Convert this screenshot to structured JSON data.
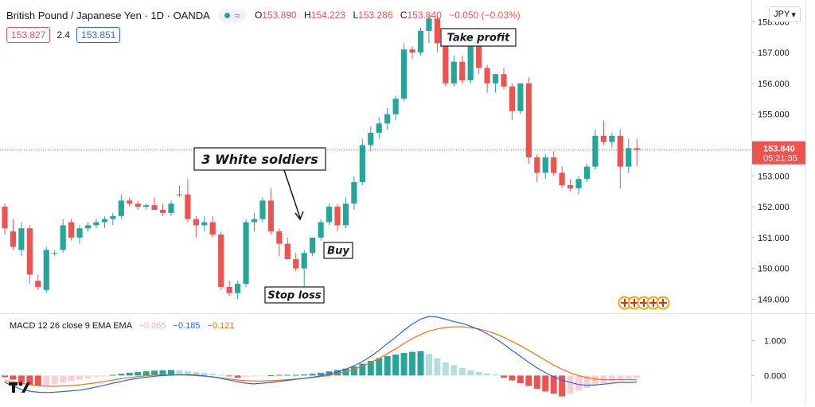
{
  "header": {
    "symbol_title": "British Pound / Japanese Yen · 1D · OANDA",
    "status_icon": "circle-dot-icon",
    "ohlc": [
      {
        "label": "O",
        "value": "153.890"
      },
      {
        "label": "H",
        "value": "154.223"
      },
      {
        "label": "L",
        "value": "153.286"
      },
      {
        "label": "C",
        "value": "153.840"
      }
    ],
    "change": "−0.050 (−0.03%)"
  },
  "quote": {
    "sell": "153.827",
    "spread": "2.4",
    "buy": "153.851"
  },
  "currency": "JPY",
  "price_axis": {
    "ticks": [
      "158.000",
      "157.000",
      "156.000",
      "155.000",
      "154.000",
      "153.000",
      "152.000",
      "151.000",
      "150.000",
      "149.000"
    ],
    "last_price": "153.840",
    "countdown": "05:21:35"
  },
  "macd": {
    "legend": "MACD 12 26 close 9 EMA EMA",
    "values": [
      "−0.065",
      "−0.185",
      "−0.121"
    ],
    "ticks": [
      "1.000",
      "0.000"
    ]
  },
  "annotations": {
    "three_soldiers": "3 White soldiers",
    "take_profit": "Take profit",
    "buy": "Buy",
    "stop_loss": "Stop loss"
  },
  "colors": {
    "up": "#26a69a",
    "down": "#ef5350",
    "macd_line": "#2962ff",
    "signal_line": "#ff6d00",
    "hist_up": "#26a69a",
    "hist_up_weak": "#b2dfdb",
    "hist_down": "#ef5350",
    "hist_down_weak": "#ffcdd2"
  },
  "chart_data": [
    {
      "type": "candlestick",
      "title": "British Pound / Japanese Yen · 1D · OANDA",
      "ylim": [
        148.6,
        158.6
      ],
      "ohlc": [
        [
          152.0,
          152.1,
          151.1,
          151.3
        ],
        [
          151.2,
          151.6,
          150.6,
          150.7
        ],
        [
          150.6,
          151.5,
          150.4,
          151.3
        ],
        [
          151.3,
          151.4,
          149.5,
          149.8
        ],
        [
          149.6,
          149.8,
          149.3,
          149.4
        ],
        [
          149.3,
          150.7,
          149.2,
          150.6
        ],
        [
          150.5,
          150.6,
          150.4,
          150.5
        ],
        [
          150.6,
          151.6,
          150.5,
          151.4
        ],
        [
          151.5,
          151.6,
          150.9,
          151.0
        ],
        [
          151.0,
          151.4,
          150.8,
          151.3
        ],
        [
          151.3,
          151.5,
          151.2,
          151.4
        ],
        [
          151.4,
          151.6,
          151.3,
          151.5
        ],
        [
          151.5,
          151.7,
          151.3,
          151.6
        ],
        [
          151.6,
          151.8,
          151.4,
          151.7
        ],
        [
          151.7,
          152.4,
          151.6,
          152.2
        ],
        [
          152.2,
          152.3,
          152.0,
          152.1
        ],
        [
          152.1,
          152.2,
          151.9,
          152.0
        ],
        [
          152.0,
          152.1,
          151.9,
          152.05
        ],
        [
          152.05,
          152.3,
          151.9,
          151.9
        ],
        [
          151.9,
          152.1,
          151.7,
          151.8
        ],
        [
          151.8,
          152.2,
          151.7,
          152.1
        ],
        [
          152.4,
          152.7,
          152.3,
          152.4
        ],
        [
          152.4,
          152.9,
          151.5,
          151.6
        ],
        [
          151.6,
          151.7,
          151.0,
          151.4
        ],
        [
          151.4,
          151.7,
          151.2,
          151.5
        ],
        [
          151.5,
          151.7,
          151.0,
          151.1
        ],
        [
          151.1,
          151.2,
          149.3,
          149.4
        ],
        [
          149.4,
          149.6,
          149.1,
          149.2
        ],
        [
          149.2,
          149.6,
          149.0,
          149.5
        ],
        [
          149.5,
          151.6,
          149.4,
          151.5
        ],
        [
          151.5,
          151.8,
          151.2,
          151.6
        ],
        [
          151.6,
          152.3,
          151.5,
          152.2
        ],
        [
          152.2,
          152.6,
          151.1,
          151.2
        ],
        [
          151.2,
          151.3,
          150.4,
          150.8
        ],
        [
          150.8,
          151.0,
          150.3,
          150.3
        ],
        [
          150.3,
          150.5,
          149.9,
          150.0
        ],
        [
          150.0,
          150.6,
          149.2,
          150.5
        ],
        [
          150.5,
          151.0,
          150.4,
          151.0
        ],
        [
          151.0,
          151.6,
          150.9,
          151.5
        ],
        [
          151.5,
          152.1,
          151.4,
          152.0
        ],
        [
          152.0,
          152.1,
          151.2,
          151.4
        ],
        [
          151.4,
          152.3,
          151.3,
          152.1
        ],
        [
          152.1,
          153.0,
          151.9,
          152.8
        ],
        [
          152.8,
          154.2,
          152.7,
          154.0
        ],
        [
          154.0,
          154.6,
          153.8,
          154.4
        ],
        [
          154.4,
          154.9,
          154.2,
          154.7
        ],
        [
          154.7,
          155.2,
          154.5,
          155.0
        ],
        [
          155.0,
          155.6,
          154.8,
          155.5
        ],
        [
          155.5,
          157.3,
          155.4,
          157.1
        ],
        [
          157.1,
          157.2,
          156.8,
          157.0
        ],
        [
          157.0,
          157.8,
          156.9,
          157.7
        ],
        [
          157.7,
          158.2,
          157.3,
          158.1
        ],
        [
          158.1,
          158.2,
          157.0,
          157.3
        ],
        [
          157.3,
          157.4,
          155.9,
          156.0
        ],
        [
          156.0,
          156.9,
          155.9,
          156.7
        ],
        [
          156.7,
          156.9,
          156.0,
          156.1
        ],
        [
          156.1,
          157.5,
          156.0,
          157.3
        ],
        [
          157.3,
          157.8,
          156.3,
          156.5
        ],
        [
          156.5,
          156.6,
          155.7,
          156.0
        ],
        [
          156.0,
          156.3,
          155.7,
          156.3
        ],
        [
          156.3,
          156.5,
          155.8,
          155.9
        ],
        [
          155.9,
          156.0,
          154.8,
          155.1
        ],
        [
          155.1,
          156.0,
          155.0,
          156.0
        ],
        [
          156.0,
          156.2,
          153.4,
          153.6
        ],
        [
          153.6,
          153.7,
          152.8,
          153.1
        ],
        [
          153.1,
          153.7,
          152.9,
          153.6
        ],
        [
          153.6,
          153.8,
          153.0,
          153.1
        ],
        [
          153.1,
          153.3,
          152.6,
          152.7
        ],
        [
          152.7,
          152.9,
          152.5,
          152.6
        ],
        [
          152.6,
          153.0,
          152.4,
          152.9
        ],
        [
          152.9,
          153.4,
          152.8,
          153.3
        ],
        [
          153.3,
          154.5,
          153.2,
          154.3
        ],
        [
          154.3,
          154.8,
          154.0,
          154.1
        ],
        [
          154.1,
          154.4,
          153.9,
          154.3
        ],
        [
          154.3,
          154.5,
          152.6,
          153.3
        ],
        [
          153.3,
          154.2,
          153.1,
          153.9
        ],
        [
          153.9,
          154.2,
          153.3,
          153.84
        ]
      ]
    },
    {
      "type": "bar+line",
      "title": "MACD 12 26 close 9 EMA EMA",
      "ylim": [
        -0.7,
        1.7
      ],
      "histogram": [
        -0.05,
        -0.12,
        -0.2,
        -0.28,
        -0.3,
        -0.28,
        -0.24,
        -0.2,
        -0.16,
        -0.12,
        -0.08,
        -0.04,
        -0.02,
        0.02,
        0.05,
        0.08,
        0.1,
        0.12,
        0.14,
        0.15,
        0.16,
        0.15,
        0.13,
        0.1,
        0.08,
        0.05,
        0.02,
        -0.02,
        -0.06,
        -0.05,
        -0.03,
        -0.01,
        0.01,
        0.02,
        0.02,
        0.02,
        0.03,
        0.05,
        0.08,
        0.12,
        0.16,
        0.2,
        0.26,
        0.34,
        0.42,
        0.5,
        0.56,
        0.6,
        0.65,
        0.68,
        0.7,
        0.62,
        0.5,
        0.38,
        0.3,
        0.22,
        0.15,
        0.1,
        0.06,
        0.03,
        -0.06,
        -0.14,
        -0.22,
        -0.3,
        -0.38,
        -0.46,
        -0.52,
        -0.6,
        -0.52,
        -0.44,
        -0.36,
        -0.3,
        -0.24,
        -0.18,
        -0.14,
        -0.1,
        -0.065
      ],
      "macd": [
        -0.2,
        -0.3,
        -0.4,
        -0.45,
        -0.48,
        -0.49,
        -0.48,
        -0.46,
        -0.44,
        -0.42,
        -0.38,
        -0.33,
        -0.28,
        -0.22,
        -0.17,
        -0.12,
        -0.08,
        -0.05,
        -0.02,
        0.0,
        0.01,
        0.02,
        0.02,
        0.01,
        -0.01,
        -0.04,
        -0.08,
        -0.13,
        -0.18,
        -0.22,
        -0.24,
        -0.22,
        -0.2,
        -0.17,
        -0.14,
        -0.11,
        -0.08,
        -0.05,
        -0.01,
        0.04,
        0.1,
        0.18,
        0.28,
        0.4,
        0.55,
        0.72,
        0.92,
        1.1,
        1.3,
        1.48,
        1.62,
        1.7,
        1.68,
        1.62,
        1.55,
        1.5,
        1.42,
        1.32,
        1.2,
        1.06,
        0.9,
        0.72,
        0.55,
        0.38,
        0.22,
        0.08,
        -0.04,
        -0.13,
        -0.2,
        -0.26,
        -0.28,
        -0.27,
        -0.25,
        -0.22,
        -0.2,
        -0.2,
        -0.185
      ],
      "signal": [
        -0.15,
        -0.18,
        -0.22,
        -0.26,
        -0.29,
        -0.31,
        -0.31,
        -0.3,
        -0.29,
        -0.27,
        -0.24,
        -0.21,
        -0.17,
        -0.13,
        -0.09,
        -0.06,
        -0.03,
        -0.01,
        0.01,
        0.02,
        0.02,
        0.02,
        0.01,
        0.0,
        -0.02,
        -0.04,
        -0.07,
        -0.1,
        -0.13,
        -0.15,
        -0.16,
        -0.16,
        -0.15,
        -0.14,
        -0.12,
        -0.1,
        -0.08,
        -0.06,
        -0.03,
        0.0,
        0.05,
        0.11,
        0.18,
        0.27,
        0.37,
        0.49,
        0.63,
        0.77,
        0.92,
        1.06,
        1.18,
        1.28,
        1.34,
        1.38,
        1.4,
        1.4,
        1.38,
        1.34,
        1.28,
        1.2,
        1.1,
        0.98,
        0.86,
        0.72,
        0.58,
        0.44,
        0.3,
        0.18,
        0.08,
        0.0,
        -0.06,
        -0.1,
        -0.12,
        -0.12,
        -0.12,
        -0.12,
        -0.121
      ]
    }
  ]
}
